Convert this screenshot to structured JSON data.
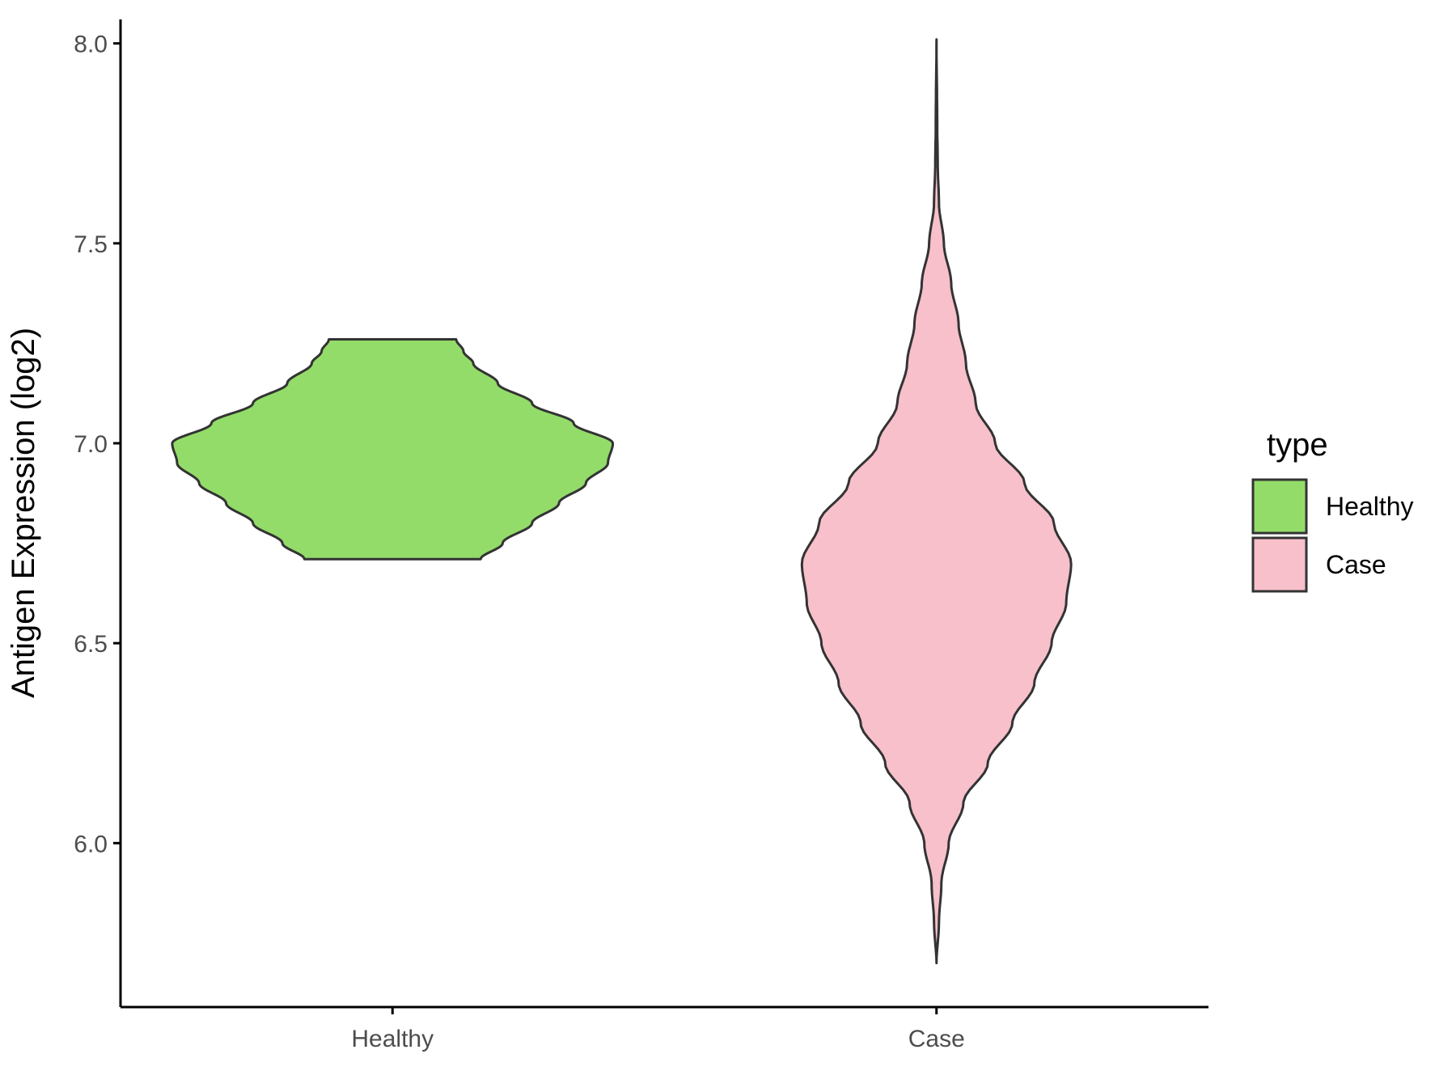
{
  "chart_data": {
    "type": "violin",
    "ylabel": "Antigen Expression (log2)",
    "xlabel": "",
    "ylim": [
      5.59,
      8.06
    ],
    "yticks": [
      "6.0",
      "6.5",
      "7.0",
      "7.5",
      "8.0"
    ],
    "categories": [
      "Healthy",
      "Case"
    ],
    "legend": {
      "title": "type",
      "position": "right",
      "entries": [
        "Healthy",
        "Case"
      ]
    },
    "grid": false,
    "series": [
      {
        "name": "Healthy",
        "color": "#93dc6a",
        "y_min": 6.71,
        "y_max": 7.26,
        "density": [
          [
            6.71,
            0.36
          ],
          [
            6.75,
            0.45
          ],
          [
            6.8,
            0.57
          ],
          [
            6.85,
            0.68
          ],
          [
            6.9,
            0.79
          ],
          [
            6.95,
            0.88
          ],
          [
            7.0,
            0.9
          ],
          [
            7.05,
            0.74
          ],
          [
            7.1,
            0.57
          ],
          [
            7.15,
            0.43
          ],
          [
            7.2,
            0.33
          ],
          [
            7.23,
            0.29
          ],
          [
            7.26,
            0.26
          ]
        ]
      },
      {
        "name": "Case",
        "color": "#f7c0cb",
        "y_min": 5.7,
        "y_max": 8.01,
        "density": [
          [
            5.7,
            0.0
          ],
          [
            5.8,
            0.01
          ],
          [
            5.9,
            0.02
          ],
          [
            6.0,
            0.05
          ],
          [
            6.1,
            0.11
          ],
          [
            6.2,
            0.21
          ],
          [
            6.3,
            0.31
          ],
          [
            6.4,
            0.4
          ],
          [
            6.5,
            0.47
          ],
          [
            6.6,
            0.53
          ],
          [
            6.7,
            0.55
          ],
          [
            6.8,
            0.48
          ],
          [
            6.9,
            0.36
          ],
          [
            7.0,
            0.24
          ],
          [
            7.1,
            0.16
          ],
          [
            7.2,
            0.12
          ],
          [
            7.3,
            0.09
          ],
          [
            7.4,
            0.06
          ],
          [
            7.5,
            0.03
          ],
          [
            7.6,
            0.01
          ],
          [
            7.7,
            0.005
          ],
          [
            7.8,
            0.003
          ],
          [
            8.01,
            0.0
          ]
        ]
      }
    ]
  }
}
